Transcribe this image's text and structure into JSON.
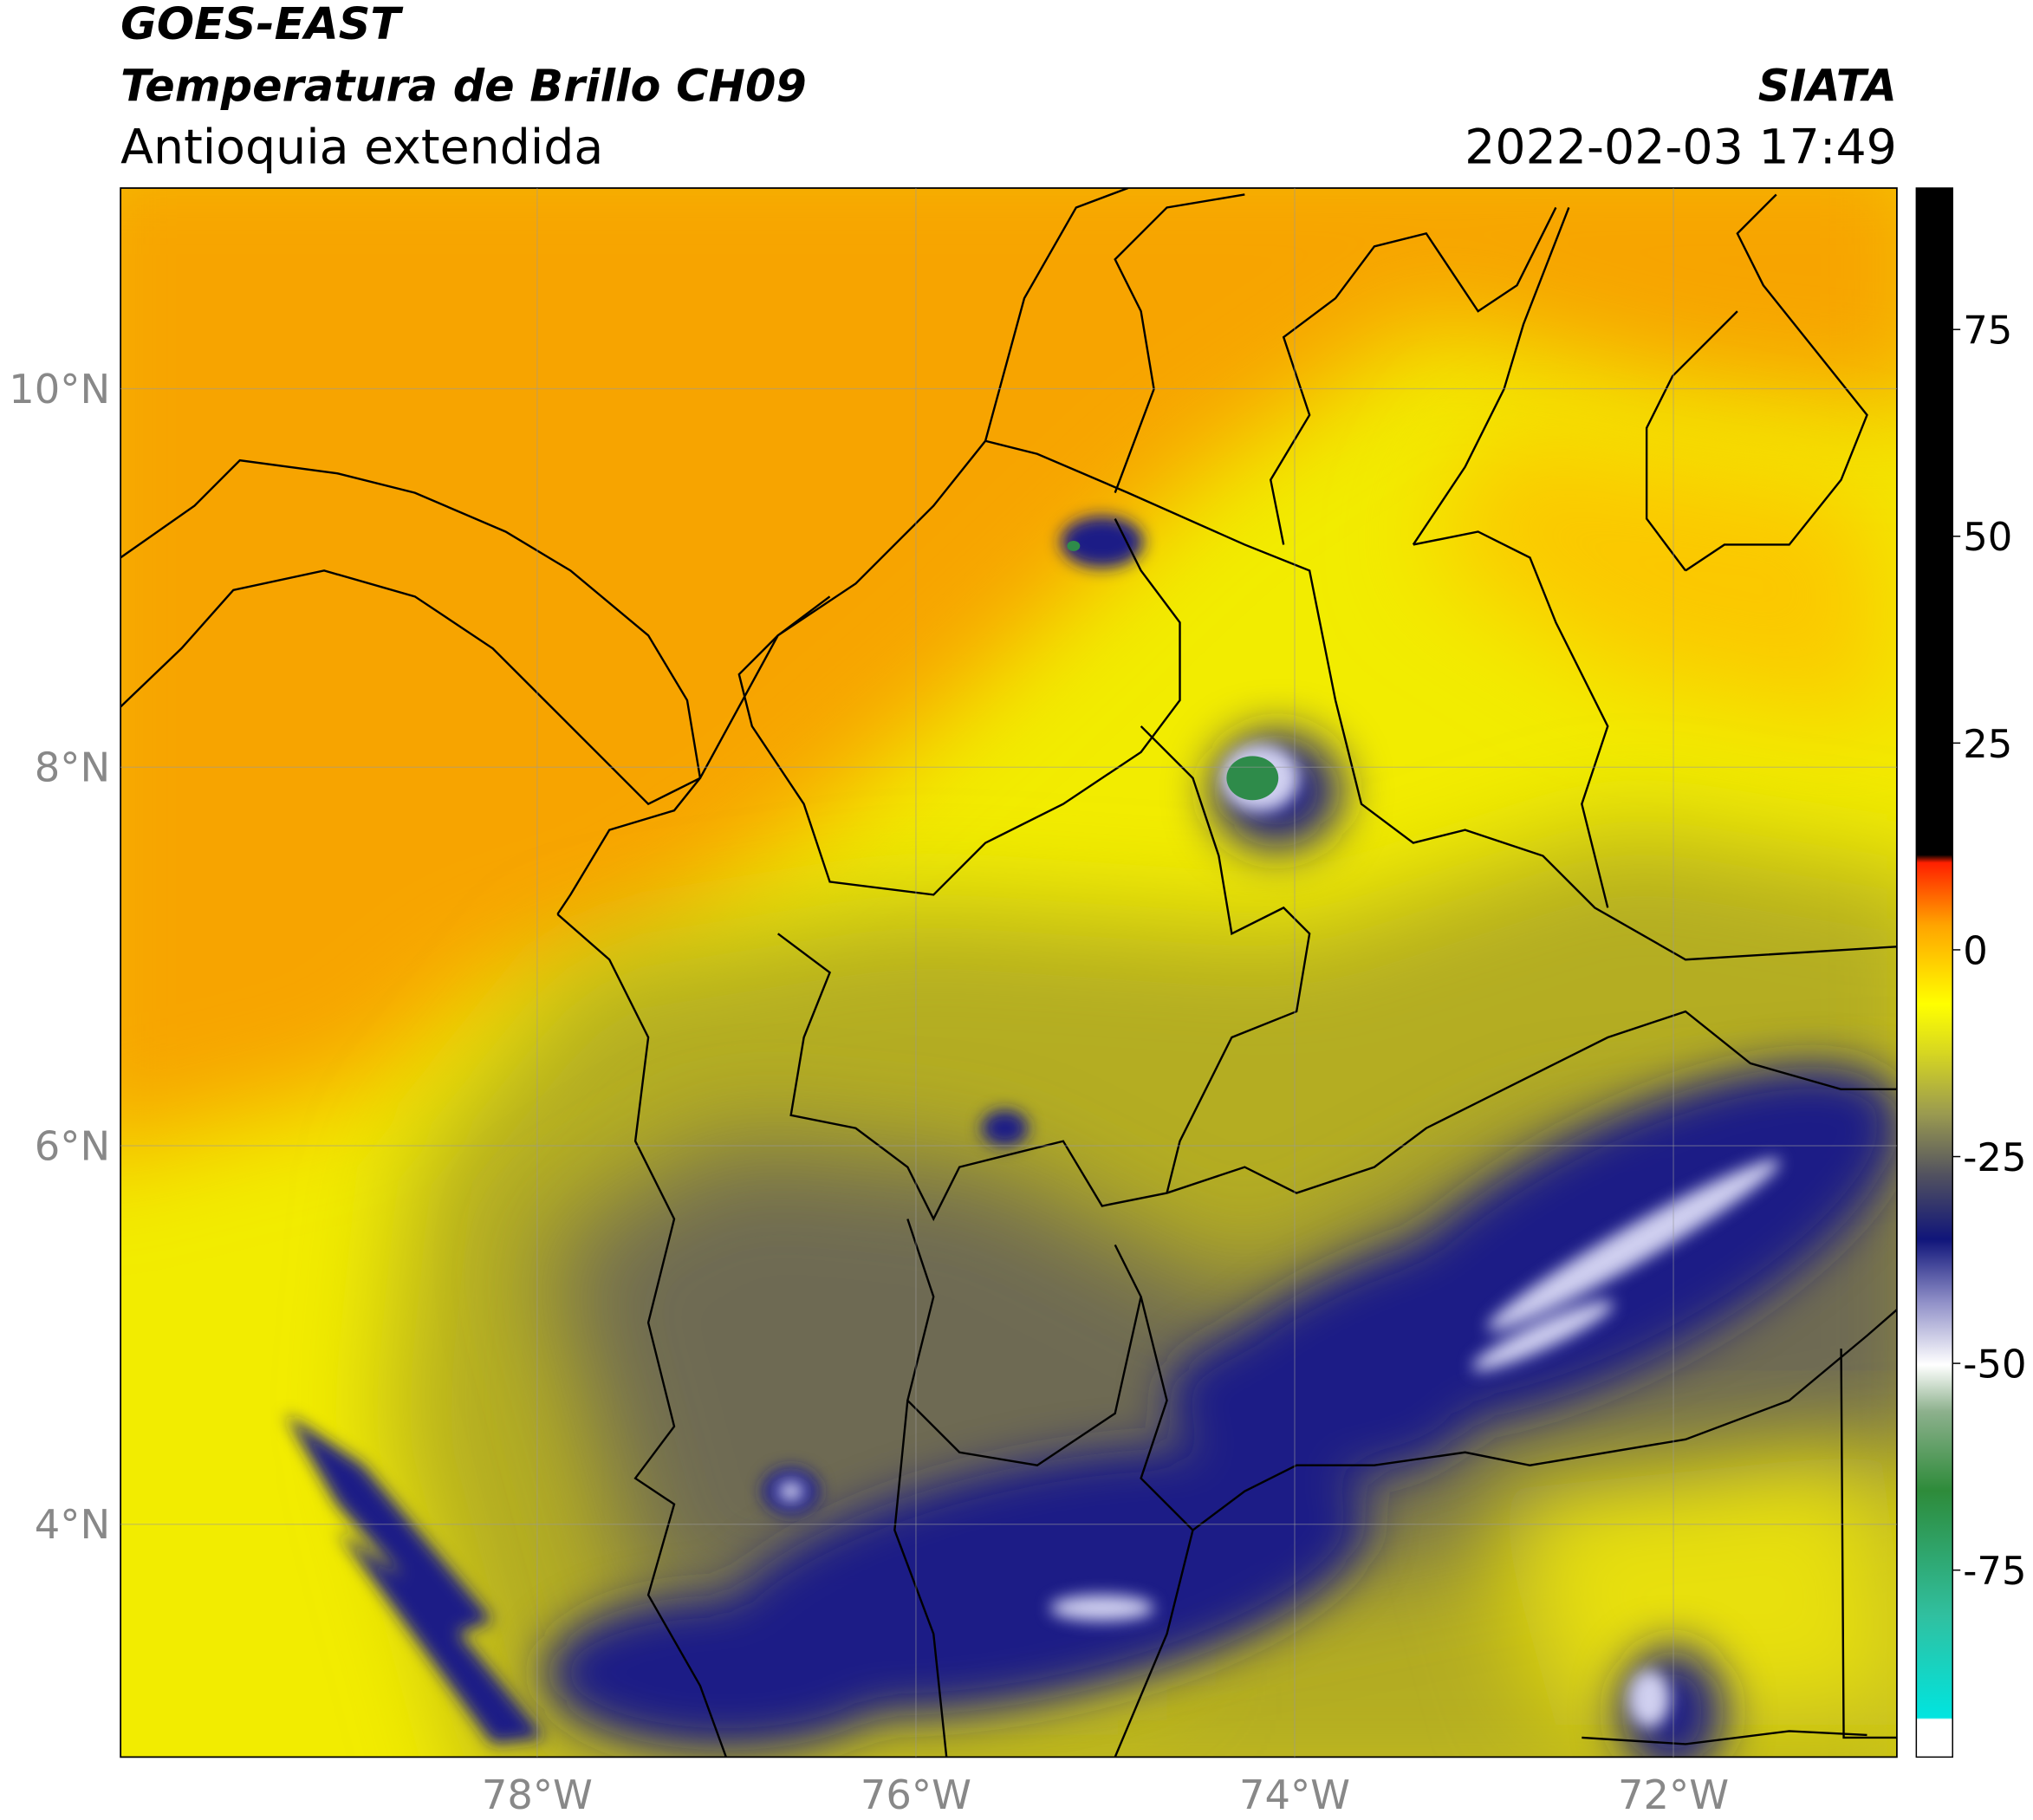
{
  "header": {
    "title_line1": "GOES-EAST",
    "title_line2": "Temperatura de Brillo CH09",
    "subtitle": "Antioquia extendida",
    "source": "SIATA",
    "timestamp": "2022-02-03 17:49"
  },
  "map": {
    "lon_range": [
      -80.2,
      -70.82
    ],
    "lat_range": [
      2.77,
      11.06
    ],
    "lon_ticks": [
      {
        "value": -78,
        "label": "78°W"
      },
      {
        "value": -76,
        "label": "76°W"
      },
      {
        "value": -74,
        "label": "74°W"
      },
      {
        "value": -72,
        "label": "72°W"
      }
    ],
    "lat_ticks": [
      {
        "value": 4,
        "label": "4°N"
      },
      {
        "value": 6,
        "label": "6°N"
      },
      {
        "value": 8,
        "label": "8°N"
      },
      {
        "value": 10,
        "label": "10°N"
      }
    ]
  },
  "colorbar": {
    "range": [
      -97.6,
      92.1
    ],
    "ticks": [
      -75,
      -50,
      -25,
      0,
      25,
      50,
      75
    ]
  }
}
